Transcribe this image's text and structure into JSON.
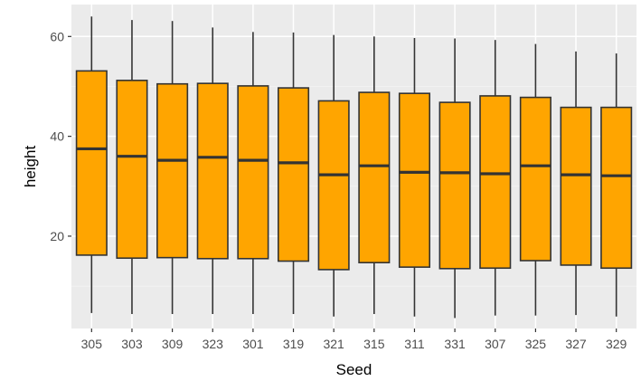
{
  "chart_data": {
    "type": "boxplot",
    "title": "",
    "xlabel": "Seed",
    "ylabel": "height",
    "ylim": [
      1.5,
      66.4
    ],
    "yticks": [
      20,
      40,
      60
    ],
    "grid": true,
    "legend": "none",
    "colors": {
      "panel_background": "#ebebeb",
      "grid_major": "#ffffff",
      "grid_minor": "#f4f4f4",
      "box_fill": "#ffa500",
      "box_outline": "#333333"
    },
    "categories": [
      "305",
      "303",
      "309",
      "323",
      "301",
      "319",
      "321",
      "315",
      "311",
      "331",
      "307",
      "325",
      "327",
      "329"
    ],
    "boxes": [
      {
        "whisker_low": 4.6,
        "q1": 16.2,
        "median": 37.5,
        "q3": 53.1,
        "whisker_high": 64.0
      },
      {
        "whisker_low": 4.4,
        "q1": 15.6,
        "median": 36.0,
        "q3": 51.2,
        "whisker_high": 63.3
      },
      {
        "whisker_low": 4.4,
        "q1": 15.7,
        "median": 35.2,
        "q3": 50.5,
        "whisker_high": 63.1
      },
      {
        "whisker_low": 4.4,
        "q1": 15.5,
        "median": 35.8,
        "q3": 50.6,
        "whisker_high": 61.8
      },
      {
        "whisker_low": 4.4,
        "q1": 15.5,
        "median": 35.2,
        "q3": 50.1,
        "whisker_high": 60.9
      },
      {
        "whisker_low": 4.4,
        "q1": 15.0,
        "median": 34.7,
        "q3": 49.7,
        "whisker_high": 60.8
      },
      {
        "whisker_low": 3.9,
        "q1": 13.3,
        "median": 32.3,
        "q3": 47.1,
        "whisker_high": 60.3
      },
      {
        "whisker_low": 4.4,
        "q1": 14.7,
        "median": 34.1,
        "q3": 48.8,
        "whisker_high": 60.0
      },
      {
        "whisker_low": 3.9,
        "q1": 13.8,
        "median": 32.8,
        "q3": 48.6,
        "whisker_high": 59.7
      },
      {
        "whisker_low": 3.6,
        "q1": 13.5,
        "median": 32.7,
        "q3": 46.8,
        "whisker_high": 59.6
      },
      {
        "whisker_low": 4.1,
        "q1": 13.6,
        "median": 32.5,
        "q3": 48.1,
        "whisker_high": 59.3
      },
      {
        "whisker_low": 4.1,
        "q1": 15.1,
        "median": 34.1,
        "q3": 47.8,
        "whisker_high": 58.5
      },
      {
        "whisker_low": 4.2,
        "q1": 14.2,
        "median": 32.3,
        "q3": 45.8,
        "whisker_high": 57.0
      },
      {
        "whisker_low": 3.9,
        "q1": 13.6,
        "median": 32.1,
        "q3": 45.8,
        "whisker_high": 56.6
      }
    ]
  }
}
